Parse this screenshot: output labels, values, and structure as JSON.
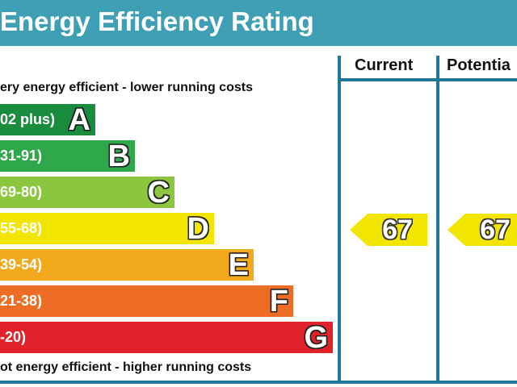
{
  "chart_data": {
    "type": "bar",
    "title": "Energy Efficiency Rating",
    "top_caption": "ery energy efficient - lower running costs",
    "bottom_caption": "ot energy efficient - higher running costs",
    "columns": [
      "Current",
      "Potentia"
    ],
    "bands": [
      {
        "letter": "A",
        "range": "02 plus)",
        "color": "#1a8c3e"
      },
      {
        "letter": "B",
        "range": "31-91)",
        "color": "#2ea84a"
      },
      {
        "letter": "C",
        "range": "69-80)",
        "color": "#8cc63f"
      },
      {
        "letter": "D",
        "range": "55-68)",
        "color": "#f2e500"
      },
      {
        "letter": "E",
        "range": "39-54)",
        "color": "#f3a91c"
      },
      {
        "letter": "F",
        "range": "21-38)",
        "color": "#ec6d23"
      },
      {
        "letter": "G",
        "range": "-20)",
        "color": "#e2222b"
      }
    ],
    "current": {
      "value": "67",
      "band": "D",
      "color": "#f2e500"
    },
    "potential": {
      "value": "67",
      "band": "D",
      "color": "#f2e500"
    }
  },
  "colors": {
    "header": "#3f9fb4",
    "frame": "#1f7896"
  }
}
